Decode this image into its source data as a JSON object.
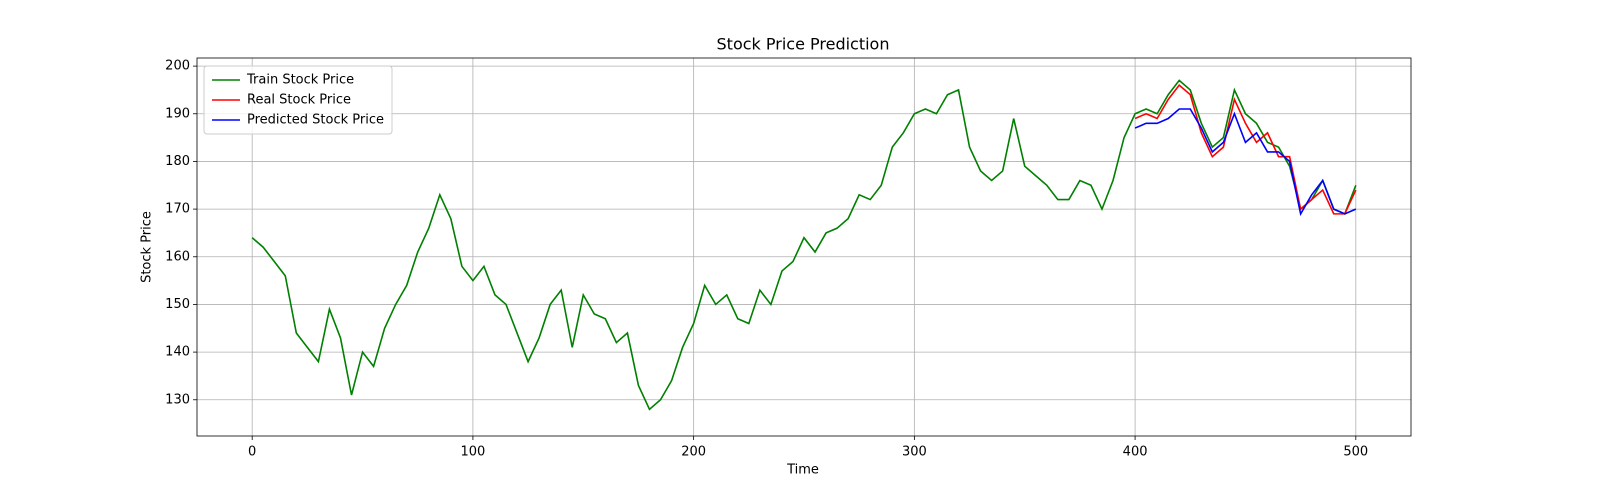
{
  "chart_data": {
    "type": "line",
    "title": "Stock Price Prediction",
    "x_label": "Time",
    "y_label": "Stock Price",
    "xlim": [
      -25,
      525
    ],
    "ylim": [
      122.4,
      201.7
    ],
    "xticks": [
      0,
      100,
      200,
      300,
      400,
      500
    ],
    "yticks": [
      130,
      140,
      150,
      160,
      170,
      180,
      190,
      200
    ],
    "grid": true,
    "legend": "upper left",
    "series": [
      {
        "name": "Train Stock Price",
        "color": "#008000",
        "x": [
          0,
          5,
          10,
          15,
          20,
          25,
          30,
          35,
          40,
          45,
          50,
          55,
          60,
          65,
          70,
          75,
          80,
          85,
          90,
          95,
          100,
          105,
          110,
          115,
          120,
          125,
          130,
          135,
          140,
          145,
          150,
          155,
          160,
          165,
          170,
          175,
          180,
          185,
          190,
          195,
          200,
          205,
          210,
          215,
          220,
          225,
          230,
          235,
          240,
          245,
          250,
          255,
          260,
          265,
          270,
          275,
          280,
          285,
          290,
          295,
          300,
          305,
          310,
          315,
          320,
          325,
          330,
          335,
          340,
          345,
          350,
          355,
          360,
          365,
          370,
          375,
          380,
          385,
          390,
          395,
          400,
          405,
          410,
          415,
          420,
          425,
          430,
          435,
          440,
          445,
          450,
          455,
          460,
          465,
          470,
          475,
          480,
          485,
          490,
          495,
          500
        ],
        "values": [
          164,
          162,
          159,
          156,
          144,
          141,
          138,
          149,
          143,
          131,
          140,
          137,
          145,
          150,
          154,
          161,
          166,
          173,
          168,
          158,
          155,
          158,
          152,
          150,
          144,
          138,
          143,
          150,
          153,
          141,
          152,
          148,
          147,
          142,
          144,
          133,
          128,
          130,
          134,
          141,
          146,
          154,
          150,
          152,
          147,
          146,
          153,
          150,
          157,
          159,
          164,
          161,
          165,
          166,
          168,
          173,
          172,
          175,
          183,
          186,
          190,
          191,
          190,
          194,
          195,
          183,
          178,
          176,
          178,
          189,
          179,
          177,
          175,
          172,
          172,
          176,
          175,
          170,
          176,
          185,
          190,
          191,
          190,
          194,
          197,
          195,
          188,
          183,
          185,
          195,
          190,
          188,
          184,
          183,
          179,
          170,
          172,
          176,
          170,
          169,
          175
        ]
      },
      {
        "name": "Real Stock Price",
        "color": "#ff0000",
        "x": [
          400,
          405,
          410,
          415,
          420,
          425,
          430,
          435,
          440,
          445,
          450,
          455,
          460,
          465,
          470,
          475,
          480,
          485,
          490,
          495,
          500
        ],
        "values": [
          189,
          190,
          189,
          193,
          196,
          194,
          186,
          181,
          183,
          193,
          188,
          184,
          186,
          181,
          181,
          170,
          172,
          174,
          169,
          169,
          174
        ]
      },
      {
        "name": "Predicted Stock Price",
        "color": "#0000ff",
        "x": [
          400,
          405,
          410,
          415,
          420,
          425,
          430,
          435,
          440,
          445,
          450,
          455,
          460,
          465,
          470,
          475,
          480,
          485,
          490,
          495,
          500
        ],
        "values": [
          187,
          188,
          188,
          189,
          191,
          191,
          187,
          182,
          184,
          190,
          184,
          186,
          182,
          182,
          180,
          169,
          173,
          176,
          170,
          169,
          170
        ]
      }
    ]
  }
}
